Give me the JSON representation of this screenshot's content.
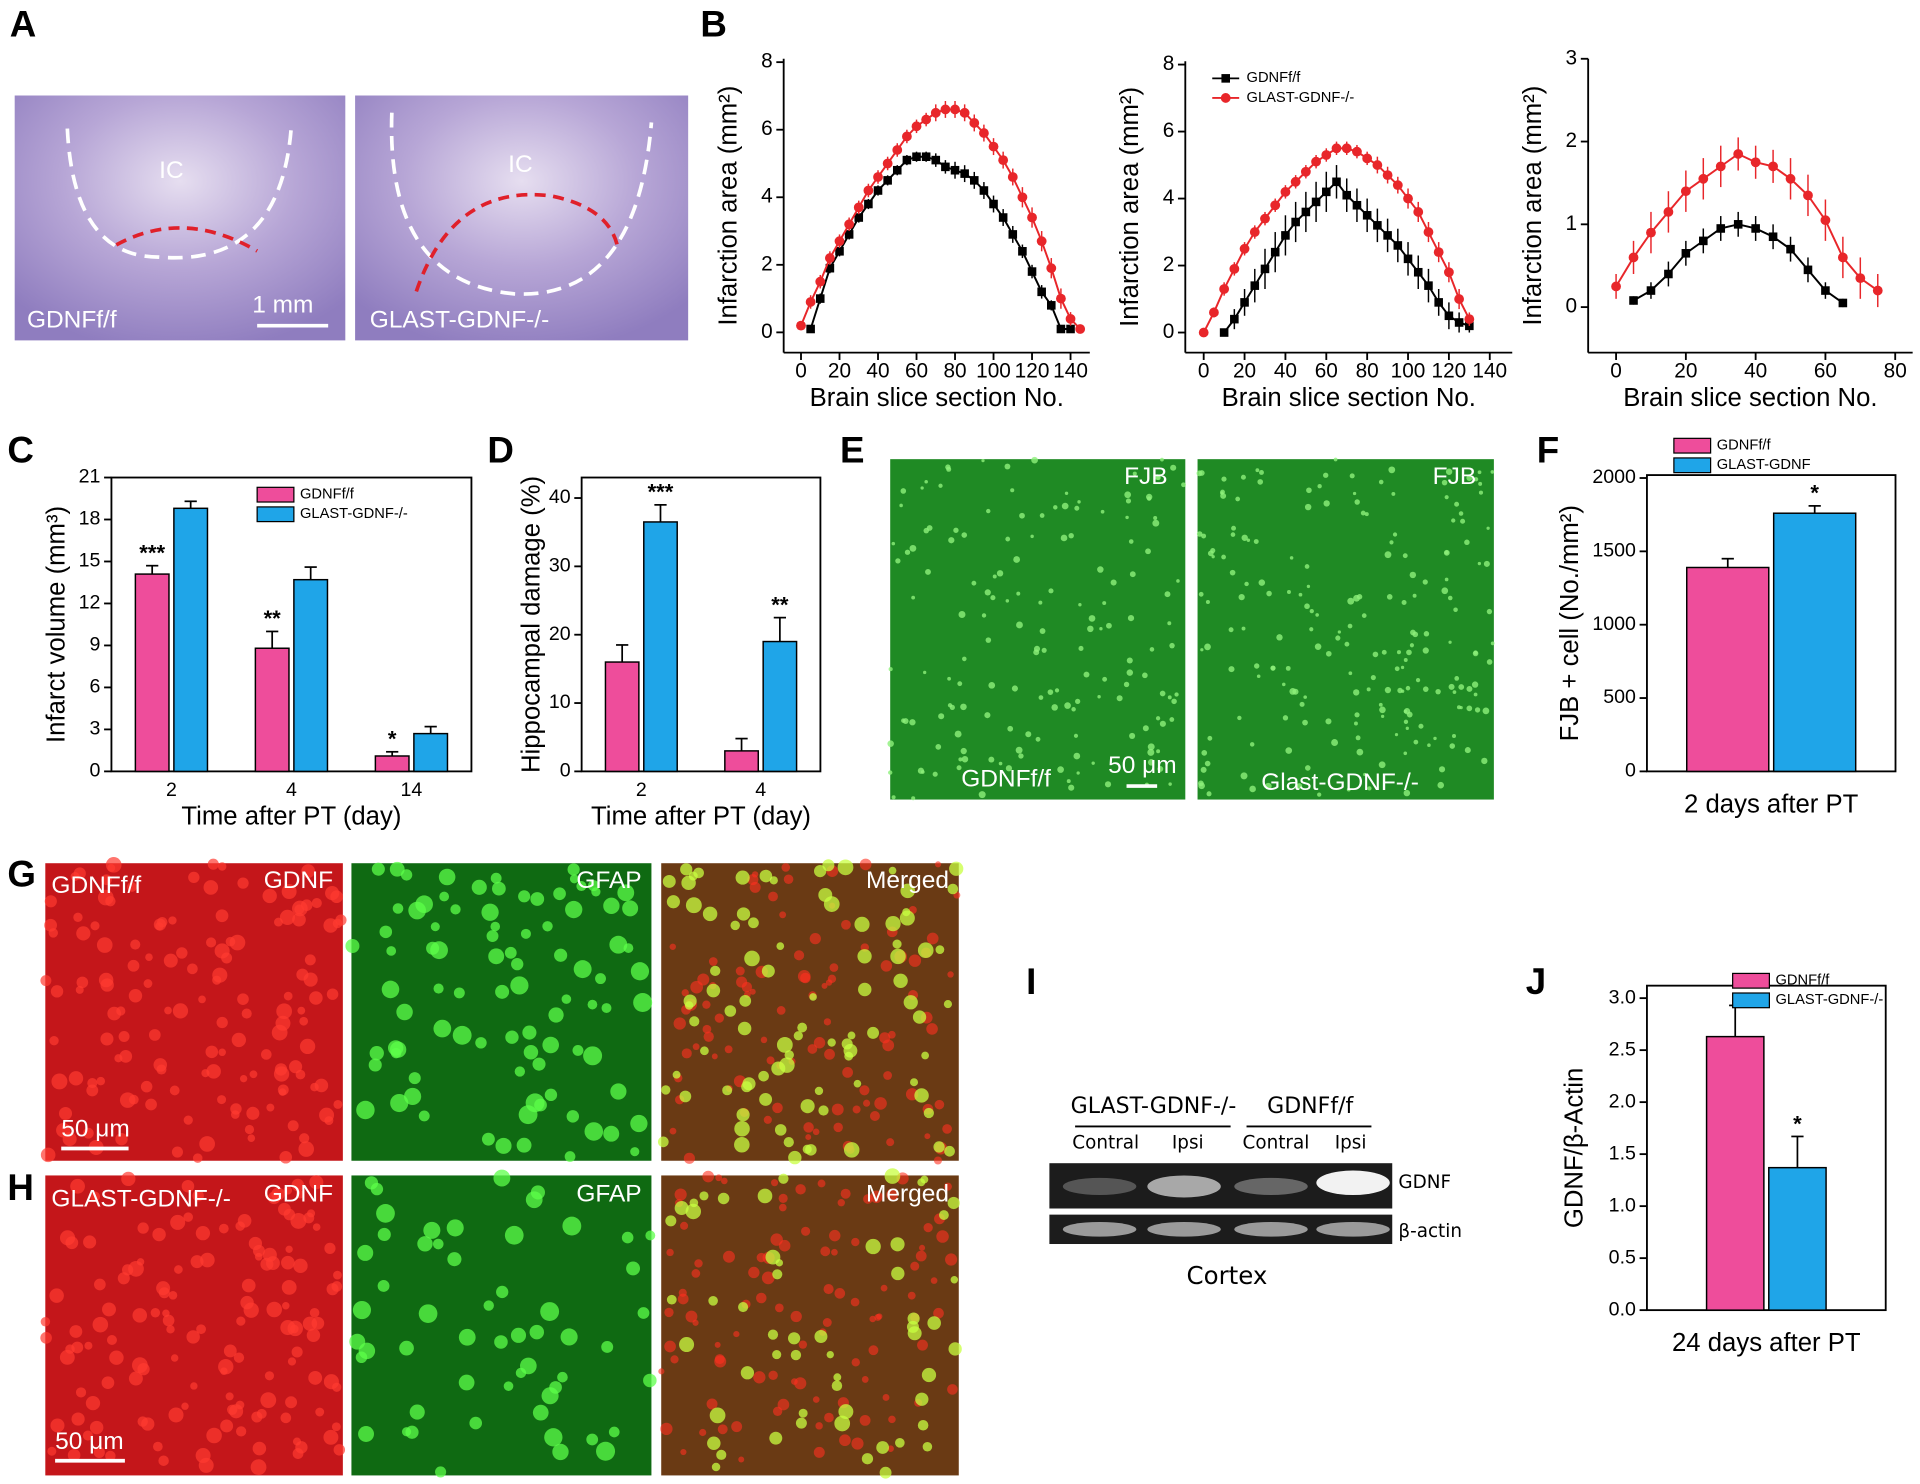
{
  "chart_data": [
    {
      "type": "line",
      "ylabel": "Infarction area (mm²)",
      "xlabel": "Brain slice section No.",
      "xlim": [
        -9,
        150
      ],
      "xticks": [
        0,
        20,
        40,
        60,
        80,
        100,
        120,
        140
      ],
      "ylim": [
        -0.6,
        8.1
      ],
      "yticks": [
        0,
        2,
        4,
        6,
        8
      ],
      "series": [
        {
          "color": "#000000",
          "marker": "square",
          "x": [
            5,
            10,
            15,
            20,
            25,
            30,
            35,
            40,
            45,
            50,
            55,
            60,
            65,
            70,
            75,
            80,
            85,
            90,
            95,
            100,
            105,
            110,
            115,
            120,
            125,
            130,
            135,
            140
          ],
          "values": [
            0.1,
            1.0,
            1.9,
            2.4,
            2.9,
            3.4,
            3.8,
            4.2,
            4.5,
            4.8,
            5.1,
            5.2,
            5.2,
            5.1,
            4.9,
            4.8,
            4.7,
            4.5,
            4.2,
            3.8,
            3.4,
            2.9,
            2.4,
            1.8,
            1.2,
            0.8,
            0.1,
            0.1
          ],
          "errors": [
            0.05,
            0.15,
            0.15,
            0.15,
            0.15,
            0.15,
            0.15,
            0.15,
            0.15,
            0.15,
            0.15,
            0.15,
            0.15,
            0.2,
            0.2,
            0.25,
            0.25,
            0.25,
            0.25,
            0.25,
            0.25,
            0.25,
            0.2,
            0.2,
            0.2,
            0.15,
            0.1,
            0.05
          ]
        },
        {
          "color": "#e8262a",
          "marker": "circle",
          "x": [
            0,
            5,
            10,
            15,
            20,
            25,
            30,
            35,
            40,
            45,
            50,
            55,
            60,
            65,
            70,
            75,
            80,
            85,
            90,
            95,
            100,
            105,
            110,
            115,
            120,
            125,
            130,
            135,
            140,
            145
          ],
          "values": [
            0.2,
            0.9,
            1.5,
            2.2,
            2.7,
            3.2,
            3.7,
            4.2,
            4.6,
            5.0,
            5.4,
            5.8,
            6.1,
            6.3,
            6.5,
            6.6,
            6.6,
            6.5,
            6.2,
            5.9,
            5.5,
            5.1,
            4.6,
            4.0,
            3.4,
            2.7,
            1.9,
            1.0,
            0.4,
            0.1
          ],
          "errors": [
            0.1,
            0.2,
            0.2,
            0.2,
            0.2,
            0.2,
            0.2,
            0.2,
            0.2,
            0.2,
            0.2,
            0.2,
            0.2,
            0.2,
            0.25,
            0.25,
            0.25,
            0.25,
            0.25,
            0.25,
            0.25,
            0.25,
            0.25,
            0.3,
            0.3,
            0.3,
            0.3,
            0.3,
            0.2,
            0.05
          ]
        }
      ]
    },
    {
      "type": "line",
      "ylabel": "Infarction area (mm²)",
      "xlabel": "Brain slice section No.",
      "xlim": [
        -9,
        151
      ],
      "xticks": [
        0,
        20,
        40,
        60,
        80,
        100,
        120,
        140
      ],
      "ylim": [
        -0.6,
        8.1
      ],
      "yticks": [
        0,
        2,
        4,
        6,
        8
      ],
      "legend": "upper left",
      "series": [
        {
          "name": "GDNFf/f",
          "color": "#000000",
          "marker": "square",
          "x": [
            10,
            15,
            20,
            25,
            30,
            35,
            40,
            45,
            50,
            55,
            60,
            65,
            70,
            75,
            80,
            85,
            90,
            95,
            100,
            105,
            110,
            115,
            120,
            125,
            130
          ],
          "values": [
            0,
            0.4,
            0.9,
            1.4,
            1.9,
            2.4,
            2.9,
            3.3,
            3.6,
            3.9,
            4.2,
            4.5,
            4.1,
            3.8,
            3.5,
            3.2,
            2.9,
            2.6,
            2.2,
            1.8,
            1.4,
            0.9,
            0.5,
            0.3,
            0.2
          ],
          "errors": [
            0.05,
            0.3,
            0.4,
            0.5,
            0.6,
            0.6,
            0.6,
            0.6,
            0.6,
            0.6,
            0.6,
            0.5,
            0.5,
            0.5,
            0.5,
            0.5,
            0.5,
            0.5,
            0.5,
            0.5,
            0.5,
            0.4,
            0.4,
            0.3,
            0.2
          ]
        },
        {
          "name": "GLAST-GDNF-/-",
          "color": "#e8262a",
          "marker": "circle",
          "x": [
            0,
            5,
            10,
            15,
            20,
            25,
            30,
            35,
            40,
            45,
            50,
            55,
            60,
            65,
            70,
            75,
            80,
            85,
            90,
            95,
            100,
            105,
            110,
            115,
            120,
            125,
            130
          ],
          "values": [
            0,
            0.6,
            1.3,
            1.9,
            2.5,
            3.0,
            3.4,
            3.8,
            4.2,
            4.5,
            4.8,
            5.1,
            5.3,
            5.5,
            5.5,
            5.4,
            5.2,
            5.0,
            4.7,
            4.4,
            4.0,
            3.6,
            3.0,
            2.4,
            1.8,
            1.0,
            0.4
          ],
          "errors": [
            0.05,
            0.15,
            0.2,
            0.2,
            0.2,
            0.2,
            0.2,
            0.2,
            0.2,
            0.2,
            0.2,
            0.2,
            0.2,
            0.2,
            0.2,
            0.2,
            0.2,
            0.25,
            0.25,
            0.25,
            0.3,
            0.3,
            0.3,
            0.3,
            0.3,
            0.3,
            0.2
          ]
        }
      ]
    },
    {
      "type": "line",
      "ylabel": "Infarction area (mm²)",
      "xlabel": "Brain slice section No.",
      "xlim": [
        -8,
        85
      ],
      "xticks": [
        0,
        20,
        40,
        60,
        80
      ],
      "ylim": [
        -0.55,
        3
      ],
      "yticks": [
        0,
        1,
        2,
        3
      ],
      "series": [
        {
          "color": "#000000",
          "marker": "square",
          "x": [
            5,
            10,
            15,
            20,
            25,
            30,
            35,
            40,
            45,
            50,
            55,
            60,
            65
          ],
          "values": [
            0.08,
            0.2,
            0.4,
            0.65,
            0.8,
            0.95,
            1.0,
            0.95,
            0.85,
            0.7,
            0.45,
            0.2,
            0.05
          ],
          "errors": [
            0.05,
            0.1,
            0.15,
            0.15,
            0.15,
            0.15,
            0.15,
            0.15,
            0.15,
            0.15,
            0.15,
            0.1,
            0.05
          ]
        },
        {
          "color": "#e8262a",
          "marker": "circle",
          "x": [
            0,
            5,
            10,
            15,
            20,
            25,
            30,
            35,
            40,
            45,
            50,
            55,
            60,
            65,
            70,
            75
          ],
          "values": [
            0.25,
            0.6,
            0.9,
            1.15,
            1.4,
            1.55,
            1.7,
            1.85,
            1.75,
            1.7,
            1.55,
            1.35,
            1.05,
            0.6,
            0.35,
            0.2
          ],
          "errors": [
            0.15,
            0.2,
            0.25,
            0.25,
            0.25,
            0.25,
            0.25,
            0.2,
            0.2,
            0.2,
            0.25,
            0.25,
            0.25,
            0.25,
            0.25,
            0.2
          ]
        }
      ]
    },
    {
      "type": "bar",
      "ylabel": "Infarct volume (mm³)",
      "xlabel": "Time after PT (day)",
      "categories": [
        "2",
        "4",
        "14"
      ],
      "ylim": [
        0,
        21
      ],
      "yticks": [
        0,
        3,
        6,
        9,
        12,
        15,
        18,
        21
      ],
      "legend": "upper right",
      "series": [
        {
          "name": "GDNFf/f",
          "color": "#ee4d9b",
          "values": [
            14.1,
            8.8,
            1.1
          ],
          "errors": [
            0.6,
            1.2,
            0.3
          ],
          "annotations": [
            "***",
            "**",
            "*"
          ]
        },
        {
          "name": "GLAST-GDNF-/-",
          "color": "#1fa5e8",
          "values": [
            18.8,
            13.7,
            2.7
          ],
          "errors": [
            0.5,
            0.9,
            0.5
          ]
        }
      ]
    },
    {
      "type": "bar",
      "ylabel": "Hippocampal damage (%)",
      "xlabel": "Time after PT (day)",
      "categories": [
        "2",
        "4"
      ],
      "ylim": [
        0,
        43
      ],
      "yticks": [
        0,
        10,
        20,
        30,
        40
      ],
      "series": [
        {
          "color": "#ee4d9b",
          "values": [
            16,
            3
          ],
          "errors": [
            2.5,
            1.8
          ]
        },
        {
          "color": "#1fa5e8",
          "values": [
            36.5,
            19
          ],
          "errors": [
            2.5,
            3.5
          ],
          "annotations": [
            "***",
            "**"
          ]
        }
      ]
    },
    {
      "type": "bar",
      "ylabel": "FJB + cell (No./mm²)",
      "xlabel": "2 days after PT",
      "categories": [
        null
      ],
      "ylim": [
        0,
        2020
      ],
      "yticks": [
        0,
        500,
        1000,
        1500,
        2000
      ],
      "legend": "upper left",
      "series": [
        {
          "name": "GDNFf/f",
          "color": "#ee4d9b",
          "values": [
            1390
          ],
          "errors": [
            60
          ]
        },
        {
          "name": "GLAST-GDNF",
          "color": "#1fa5e8",
          "values": [
            1760
          ],
          "errors": [
            50
          ],
          "annotations": [
            "*"
          ]
        }
      ]
    },
    {
      "type": "bar",
      "ylabel": "GDNF/β-Actin",
      "xlabel": "24 days after PT",
      "categories": [
        null
      ],
      "ylim": [
        0,
        3.12
      ],
      "yticks": [
        {
          "value": 0,
          "label": "0.0"
        },
        0.5,
        {
          "value": 1,
          "label": "1.0"
        },
        1.5,
        {
          "value": 2,
          "label": "2.0"
        },
        2.5,
        {
          "value": 3,
          "label": "3.0"
        }
      ],
      "legend": "upper right",
      "series": [
        {
          "name": "GDNFf/f",
          "color": "#ee4d9b",
          "values": [
            2.63
          ],
          "errors": [
            0.3
          ]
        },
        {
          "name": "GLAST-GDNF-/-",
          "color": "#1fa5e8",
          "values": [
            1.37
          ],
          "errors": [
            0.3
          ],
          "annotations": [
            "*"
          ]
        }
      ]
    }
  ],
  "figure": {
    "panels": [
      "A",
      "B",
      "C",
      "D",
      "E",
      "F",
      "G",
      "H",
      "I",
      "J"
    ],
    "A": {
      "labels": [
        "IC",
        "IC",
        "GDNFf/f",
        "1 mm",
        "GLAST-GDNF-/-"
      ]
    },
    "E": {
      "labels": [
        "FJB",
        "FJB",
        "GDNFf/f",
        "50 μm",
        "Glast-GDNF-/-"
      ]
    },
    "G": {
      "labels": [
        "GDNFf/f",
        "GDNF",
        "GFAP",
        "Merged",
        "50 μm"
      ]
    },
    "H": {
      "labels": [
        "GLAST-GDNF-/-",
        "GDNF",
        "GFAP",
        "Merged",
        "50 μm"
      ]
    },
    "I": {
      "groups": [
        "GLAST-GDNF-/-",
        "GDNFf/f"
      ],
      "lanes": [
        "Contral",
        "Ipsi",
        "Contral",
        "Ipsi"
      ],
      "bands": [
        "GDNF",
        "β-actin"
      ],
      "region": "Cortex"
    }
  }
}
